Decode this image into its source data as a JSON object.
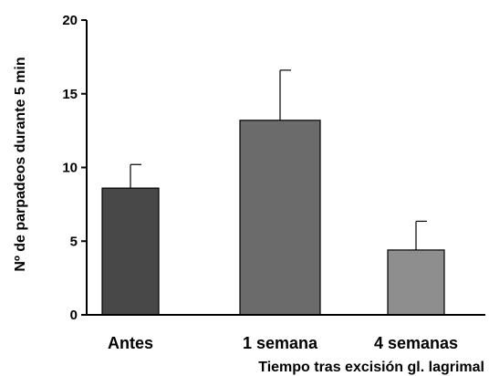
{
  "chart_data": {
    "type": "bar",
    "title": "",
    "xlabel": "Tiempo tras excisión gl. lagrimal",
    "ylabel": "Nº de parpadeos durante 5 min",
    "ylim": [
      0,
      20
    ],
    "yticks": [
      0,
      5,
      10,
      15,
      20
    ],
    "ytick_labels": [
      "0",
      "5",
      "10",
      "15",
      "20"
    ],
    "grid": false,
    "categories": [
      "Antes",
      "1 semana",
      "4 semanas"
    ],
    "values": [
      8.6,
      13.2,
      4.4
    ],
    "error_upper": [
      1.6,
      3.4,
      1.95
    ],
    "bar_colors": [
      "#484848",
      "#6b6b6b",
      "#8e8e8e"
    ]
  }
}
